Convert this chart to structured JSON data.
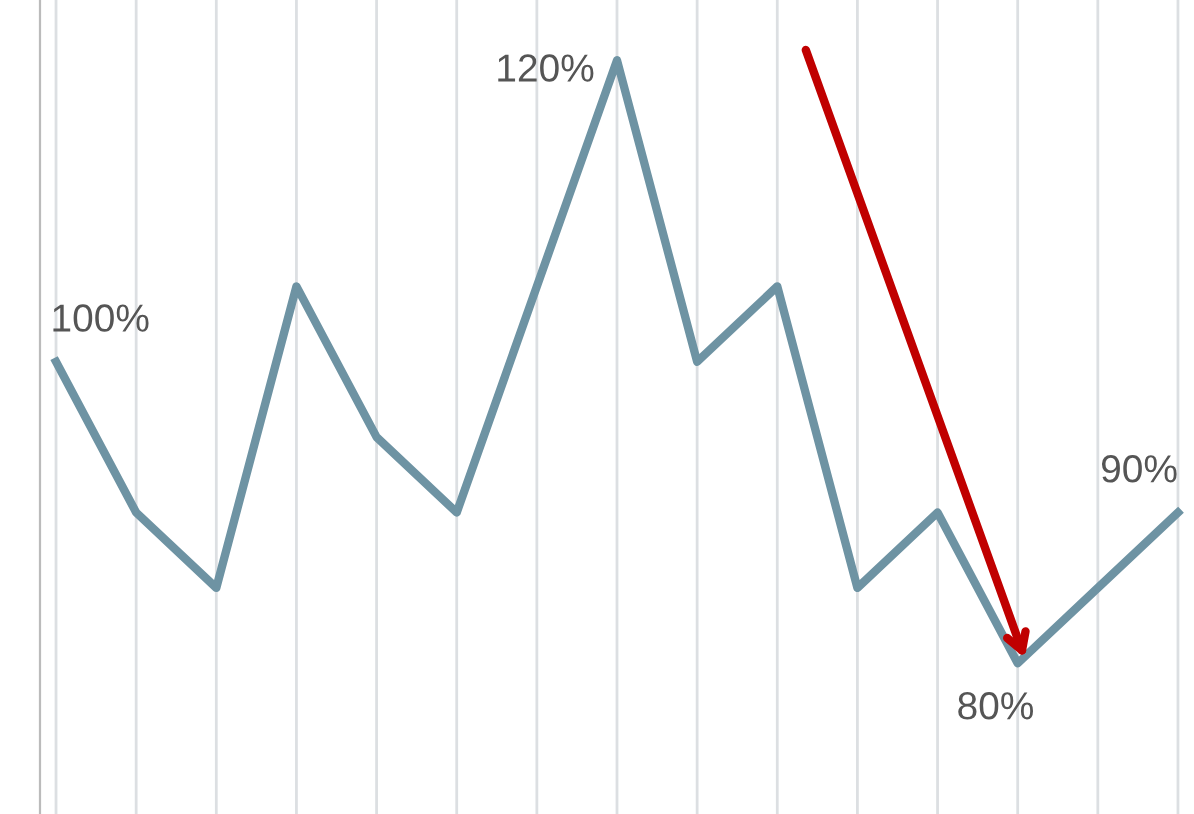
{
  "chart_data": {
    "type": "line",
    "categories": [
      null,
      null,
      null,
      null,
      null,
      null,
      null,
      null,
      null,
      null,
      null,
      null,
      null,
      null,
      null
    ],
    "values": [
      100,
      90,
      85,
      105,
      95,
      90,
      105,
      120,
      100,
      105,
      85,
      90,
      80,
      85,
      90
    ],
    "value_labels": [
      "100%",
      null,
      null,
      null,
      null,
      null,
      null,
      "120%",
      null,
      null,
      null,
      null,
      "80%",
      null,
      "90%"
    ],
    "color": "#6e93a3",
    "ylim": [
      70,
      124
    ],
    "grid": "x",
    "marker": "none",
    "line_style": "solid"
  }
}
